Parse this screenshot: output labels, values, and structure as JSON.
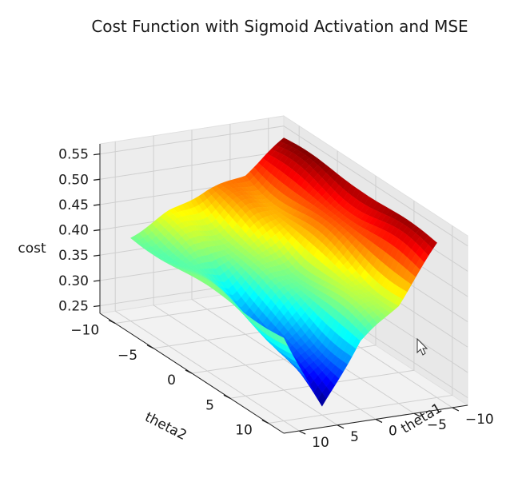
{
  "chart_data": {
    "type": "surface3d",
    "title": "Cost Function with Sigmoid Activation and MSE",
    "xlabel": "theta1",
    "ylabel": "theta2",
    "zlabel": "cost",
    "xlim": [
      -12,
      12
    ],
    "ylim": [
      -12,
      12
    ],
    "zlim": [
      0.235,
      0.57
    ],
    "x_ticks": [
      -10,
      -5,
      0,
      5,
      10
    ],
    "y_ticks": [
      -10,
      -5,
      0,
      5,
      10
    ],
    "z_ticks": [
      0.25,
      0.3,
      0.35,
      0.4,
      0.45,
      0.5,
      0.55
    ],
    "x_tick_labels": [
      "−10",
      "−5",
      "0",
      "5",
      "10"
    ],
    "y_tick_labels": [
      "−10",
      "−5",
      "0",
      "5",
      "10"
    ],
    "z_tick_labels": [
      "0.25",
      "0.30",
      "0.35",
      "0.40",
      "0.45",
      "0.50",
      "0.55"
    ],
    "colormap": "jet",
    "grid": true,
    "surface_samples": [
      {
        "theta1": -10,
        "theta2": -10,
        "cost": 0.55
      },
      {
        "theta1": -10,
        "theta2": 0,
        "cost": 0.55
      },
      {
        "theta1": -10,
        "theta2": 10,
        "cost": 0.54
      },
      {
        "theta1": -5,
        "theta2": -10,
        "cost": 0.49
      },
      {
        "theta1": -5,
        "theta2": 10,
        "cost": 0.43
      },
      {
        "theta1": 0,
        "theta2": -10,
        "cost": 0.47
      },
      {
        "theta1": 0,
        "theta2": 0,
        "cost": 0.4
      },
      {
        "theta1": 0,
        "theta2": 10,
        "cost": 0.37
      },
      {
        "theta1": 5,
        "theta2": -10,
        "cost": 0.44
      },
      {
        "theta1": 5,
        "theta2": 0,
        "cost": 0.35
      },
      {
        "theta1": 5,
        "theta2": 10,
        "cost": 0.25
      },
      {
        "theta1": 10,
        "theta2": -10,
        "cost": 0.4
      },
      {
        "theta1": 10,
        "theta2": 0,
        "cost": 0.4
      },
      {
        "theta1": 10,
        "theta2": 10,
        "cost": 0.4
      }
    ]
  }
}
